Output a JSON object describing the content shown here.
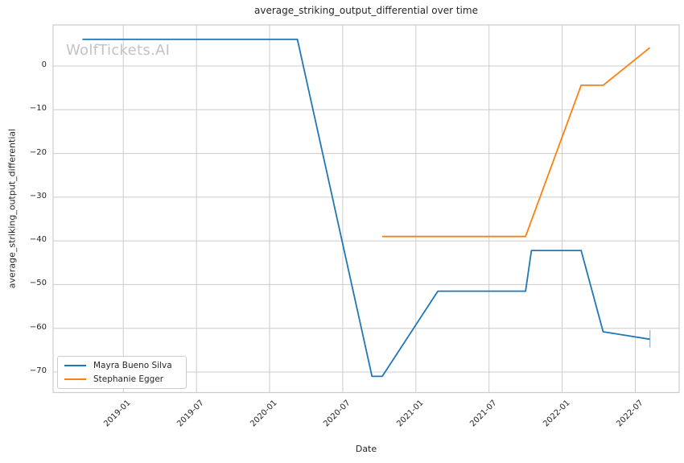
{
  "watermark": "WolfTickets.AI",
  "chart_data": {
    "type": "line",
    "title": "average_striking_output_differential over time",
    "xlabel": "Date",
    "ylabel": "average_striking_output_differential",
    "grid": true,
    "legend_position": "lower left",
    "background_color": "#ffffff",
    "grid_color": "#cccccc",
    "spine_color": "#cccccc",
    "text_color": "#262626",
    "watermark_color": "#c3c3c3",
    "xlim": [
      2018.52,
      2022.8
    ],
    "ylim": [
      -74.7,
      9.4
    ],
    "x_ticks": [
      {
        "x": 2019.0,
        "label": "2019-01"
      },
      {
        "x": 2019.5,
        "label": "2019-07"
      },
      {
        "x": 2020.0,
        "label": "2020-01"
      },
      {
        "x": 2020.5,
        "label": "2020-07"
      },
      {
        "x": 2021.0,
        "label": "2021-01"
      },
      {
        "x": 2021.5,
        "label": "2021-07"
      },
      {
        "x": 2022.0,
        "label": "2022-01"
      },
      {
        "x": 2022.5,
        "label": "2022-07"
      }
    ],
    "y_ticks": [
      {
        "y": 0,
        "label": "0"
      },
      {
        "y": -10,
        "label": "−10"
      },
      {
        "y": -20,
        "label": "−20"
      },
      {
        "y": -30,
        "label": "−30"
      },
      {
        "y": -40,
        "label": "−40"
      },
      {
        "y": -50,
        "label": "−50"
      },
      {
        "y": -60,
        "label": "−60"
      },
      {
        "y": -70,
        "label": "−70"
      }
    ],
    "series": [
      {
        "name": "Mayra Bueno Silva",
        "color": "#1f77b4",
        "points": [
          {
            "date": "2018-09",
            "x": 2018.72,
            "y": 6.1
          },
          {
            "date": "2020-03",
            "x": 2020.19,
            "y": 6.1
          },
          {
            "date": "2020-09",
            "x": 2020.7,
            "y": -71.0
          },
          {
            "date": "2020-10",
            "x": 2020.77,
            "y": -71.0
          },
          {
            "date": "2021-02",
            "x": 2021.15,
            "y": -51.5
          },
          {
            "date": "2021-10",
            "x": 2021.75,
            "y": -51.5
          },
          {
            "date": "2021-10",
            "x": 2021.79,
            "y": -42.2
          },
          {
            "date": "2022-02",
            "x": 2022.13,
            "y": -42.2
          },
          {
            "date": "2022-04",
            "x": 2022.28,
            "y": -60.8
          },
          {
            "date": "2022-08",
            "x": 2022.6,
            "y": -62.5
          }
        ],
        "end_cap": {
          "x": 2022.6,
          "y1": -60.4,
          "y2": -64.4,
          "opacity": 0.45
        }
      },
      {
        "name": "Stephanie Egger",
        "color": "#ff7f0e",
        "points": [
          {
            "date": "2020-10",
            "x": 2020.77,
            "y": -39.0
          },
          {
            "date": "2021-10",
            "x": 2021.75,
            "y": -39.0
          },
          {
            "date": "2022-02",
            "x": 2022.13,
            "y": -4.4
          },
          {
            "date": "2022-04",
            "x": 2022.28,
            "y": -4.4
          },
          {
            "date": "2022-08",
            "x": 2022.6,
            "y": 4.2
          }
        ]
      }
    ]
  }
}
